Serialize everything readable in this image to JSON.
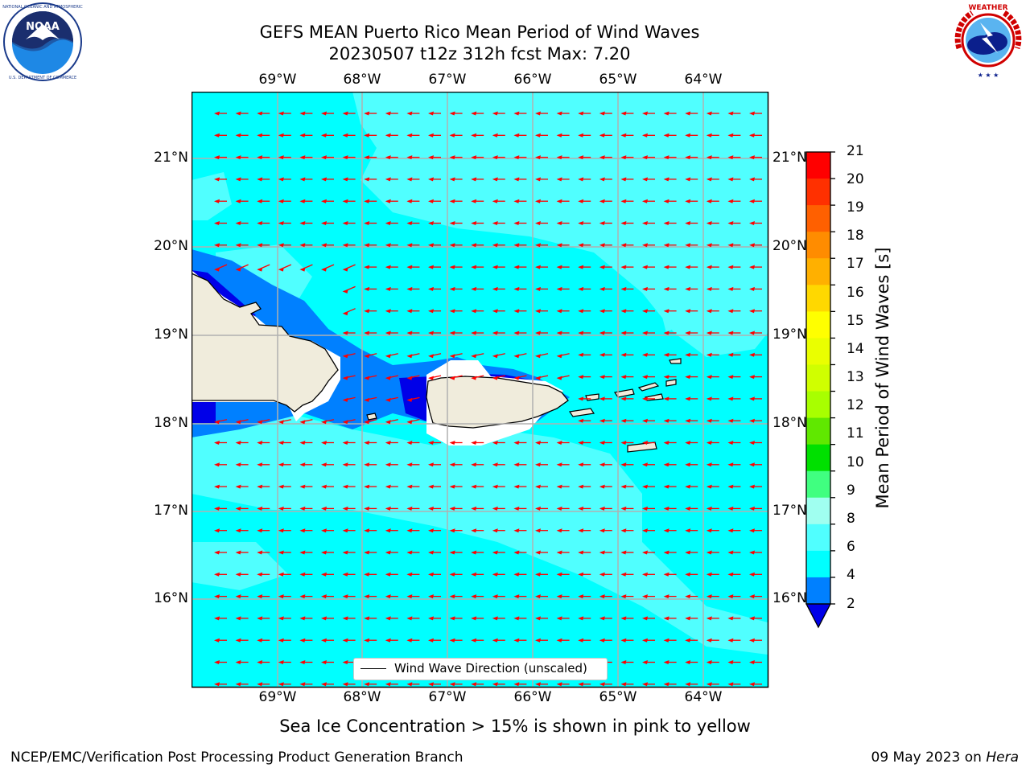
{
  "header": {
    "title_line1": "GEFS MEAN Puerto Rico Mean Period of Wind Waves",
    "title_line2": "20230507 t12z 312h fcst   Max: 7.20"
  },
  "logos": {
    "left": {
      "name": "NOAA",
      "ring_text": "NATIONAL OCEANIC AND ATMOSPHERIC ADMINISTRATION · U.S. DEPARTMENT OF COMMERCE"
    },
    "right": {
      "name": "NATIONAL WEATHER SERVICE"
    }
  },
  "map": {
    "lon_ticks": [
      "69°W",
      "68°W",
      "67°W",
      "66°W",
      "65°W",
      "64°W"
    ],
    "lat_ticks": [
      "21°N",
      "20°N",
      "19°N",
      "18°N",
      "17°N",
      "16°N"
    ],
    "legend": "Wind Wave Direction (unscaled)",
    "wind_direction": "from east toward west (red arrows)",
    "land_color": "#f0ecdc",
    "coast_color": "#000000",
    "grid_color": "#b0b0b0"
  },
  "colorbar": {
    "label": "Mean Period of Wind Waves [s]",
    "ticks": [
      "21",
      "20",
      "19",
      "18",
      "17",
      "16",
      "15",
      "14",
      "13",
      "12",
      "11",
      "10",
      "9",
      "8",
      "6",
      "4",
      "2"
    ],
    "colors": [
      "#ff0000",
      "#ff3000",
      "#ff6000",
      "#ff8c00",
      "#ffb000",
      "#ffd800",
      "#ffff00",
      "#eaff00",
      "#d0ff00",
      "#a8ff00",
      "#60e800",
      "#00e000",
      "#40ff80",
      "#a0fff0",
      "#50ffff",
      "#00ffff",
      "#0080ff"
    ],
    "extend_min_color": "#0000e8"
  },
  "notes": {
    "sea_ice": "Sea Ice Concentration > 15% is shown in pink to yellow",
    "producer": "NCEP/EMC/Verification Post Processing Product Generation Branch",
    "date_prefix": "09 May 2023 on ",
    "machine": "Hera"
  }
}
